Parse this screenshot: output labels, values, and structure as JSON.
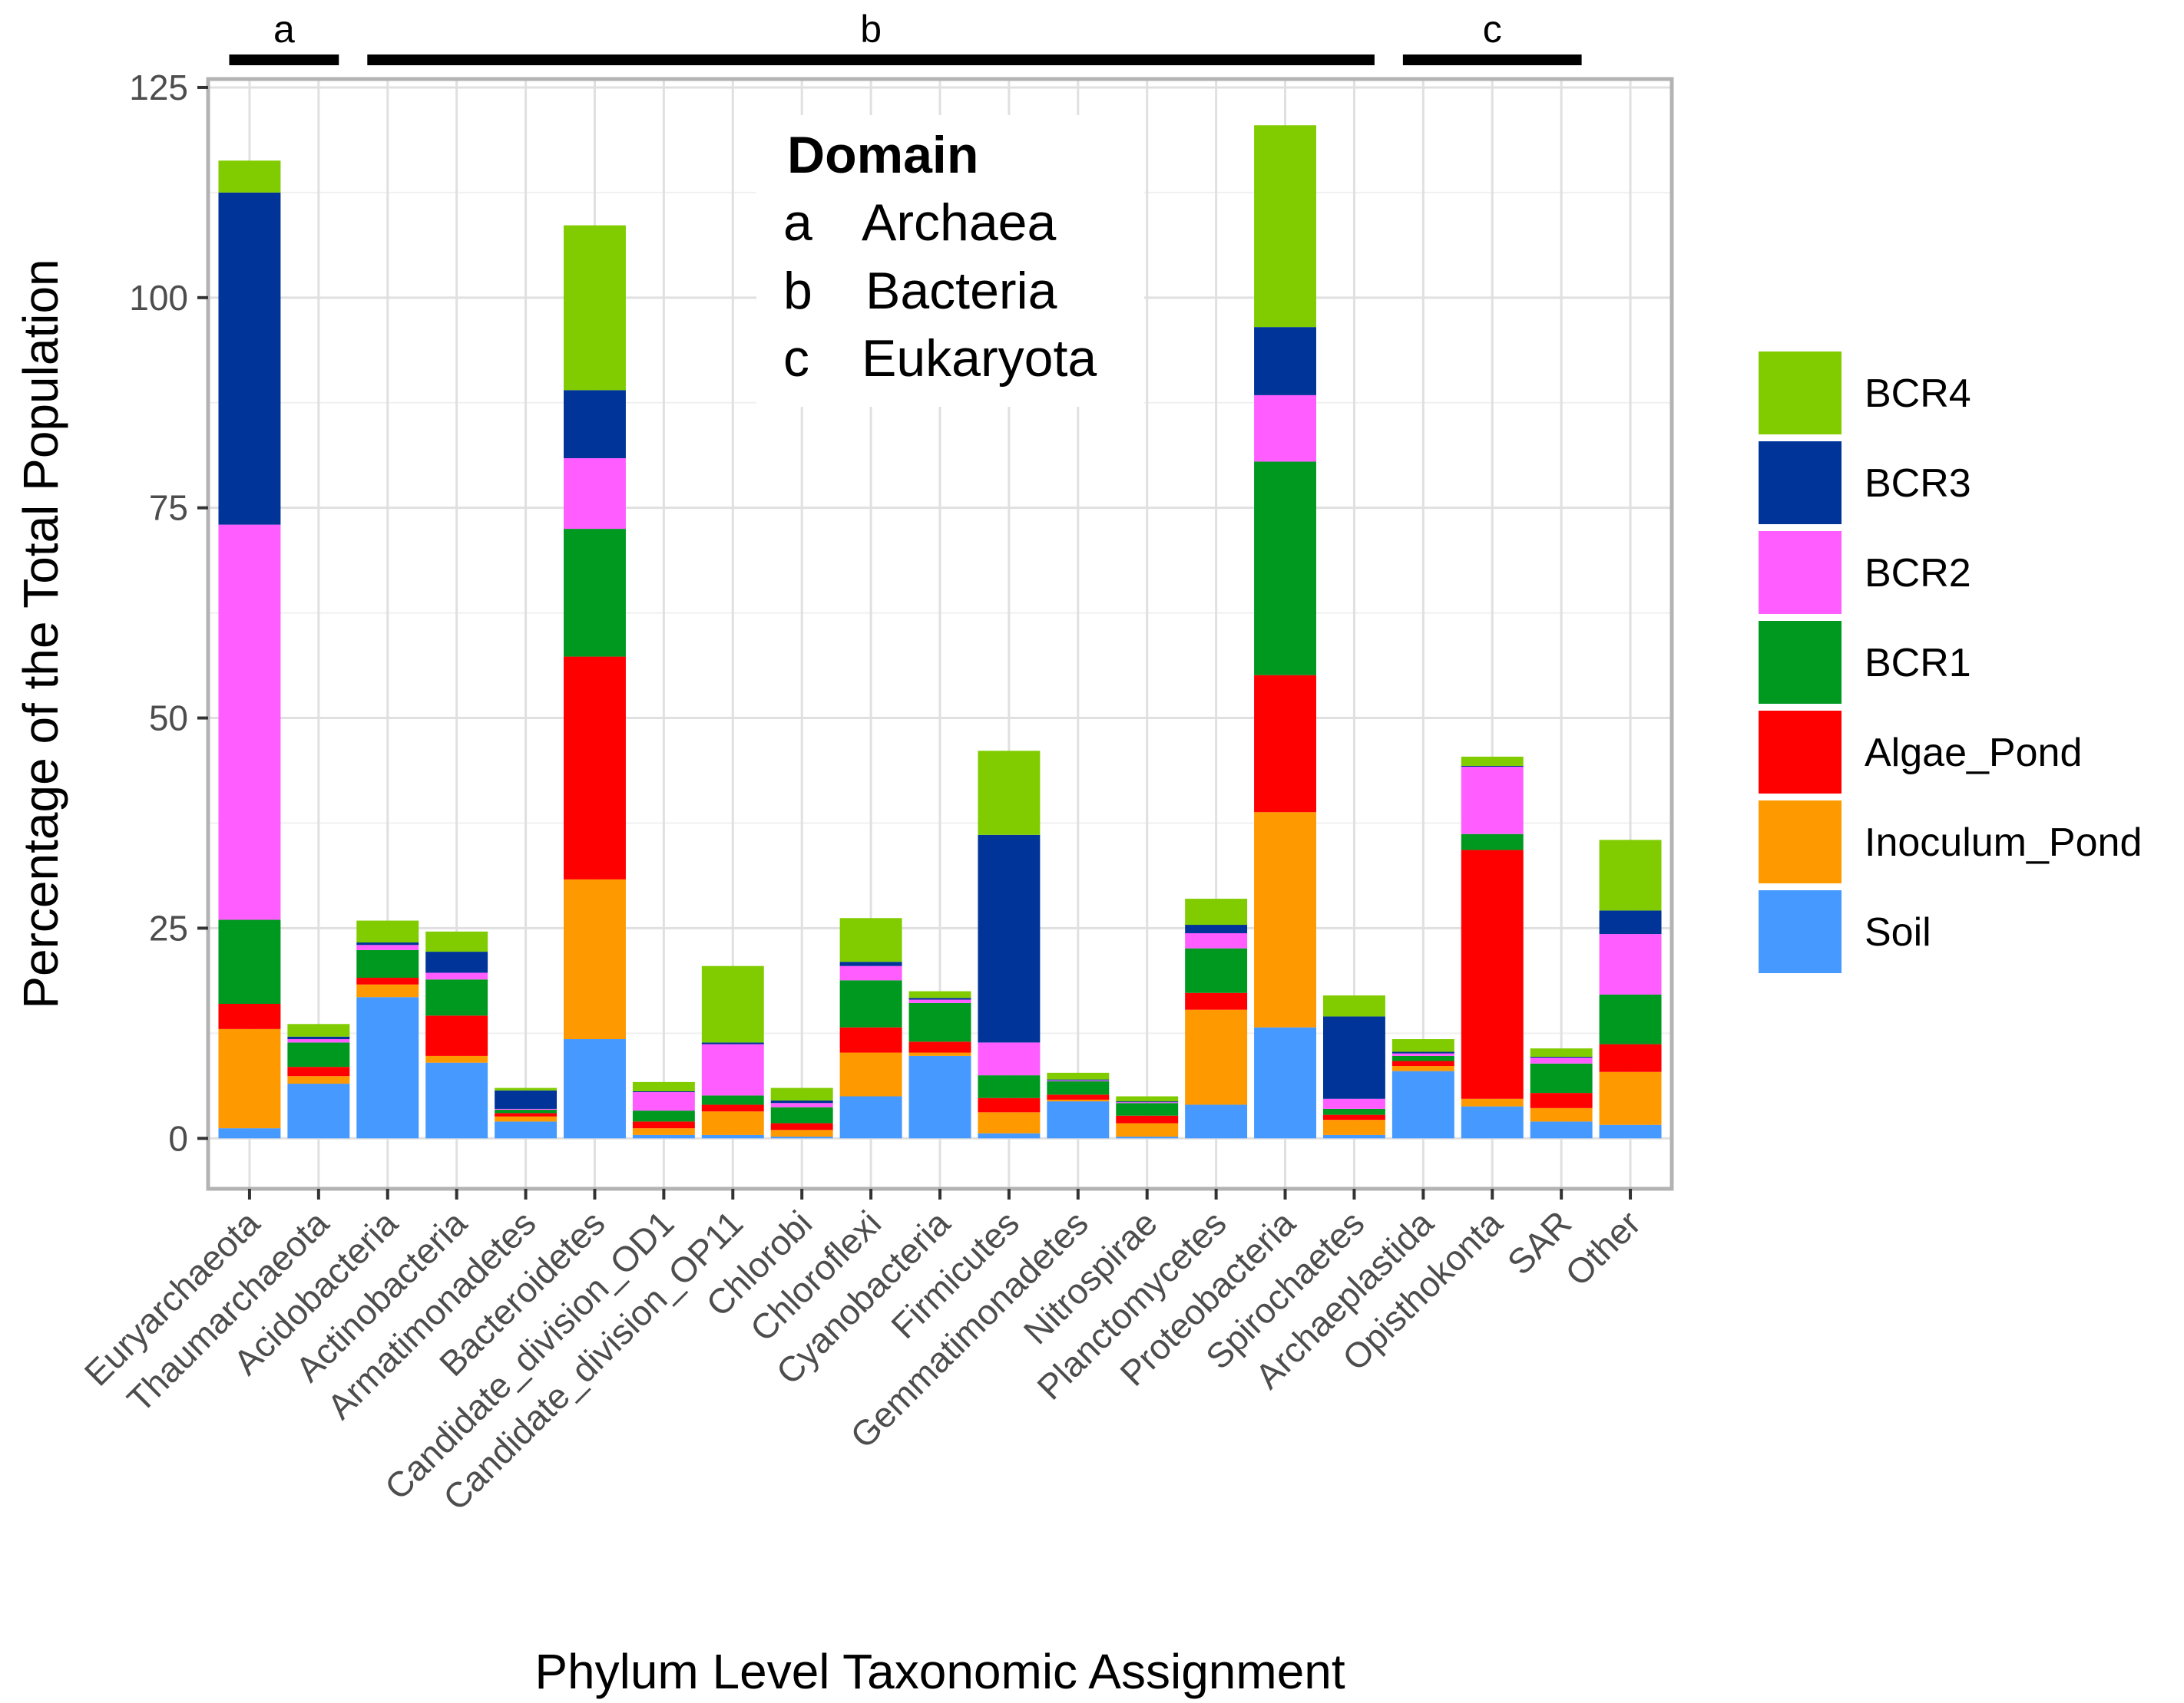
{
  "chart_data": {
    "type": "bar",
    "stacked": true,
    "title": "",
    "xlabel": "Phylum Level Taxonomic Assignment",
    "ylabel": "Percentage of the Total Population",
    "ylim": [
      -6,
      126
    ],
    "yticks": [
      0,
      25,
      50,
      75,
      100,
      125
    ],
    "grid": true,
    "categories": [
      "Euryarchaeota",
      "Thaumarchaeota",
      "Acidobacteria",
      "Actinobacteria",
      "Armatimonadetes",
      "Bacteroidetes",
      "Candidate_division_OD1",
      "Candidate_division_OP11",
      "Chlorobi",
      "Chloroflexi",
      "Cyanobacteria",
      "Firmicutes",
      "Gemmatimonadetes",
      "Nitrospirae",
      "Planctomycetes",
      "Proteobacteria",
      "Spirochaetes",
      "Archaeplastida",
      "Opisthokonta",
      "SAR",
      "Other"
    ],
    "series": [
      {
        "name": "Soil",
        "color": "#4599ff",
        "values": [
          1.2,
          6.5,
          16.8,
          9.0,
          2.0,
          11.8,
          0.4,
          0.4,
          0.2,
          5.0,
          9.8,
          0.6,
          4.4,
          0.2,
          4.0,
          13.2,
          0.4,
          8.0,
          3.8,
          2.0,
          1.6
        ]
      },
      {
        "name": "Inoculum_Pond",
        "color": "#ff9900",
        "values": [
          11.8,
          0.9,
          1.5,
          0.8,
          0.6,
          19.0,
          0.8,
          2.8,
          0.8,
          5.2,
          0.4,
          2.5,
          0.2,
          1.6,
          11.3,
          25.6,
          1.8,
          0.6,
          0.9,
          1.6,
          6.3
        ]
      },
      {
        "name": "Algae_Pond",
        "color": "#ff0000",
        "values": [
          3.0,
          1.1,
          0.8,
          4.8,
          0.4,
          26.5,
          0.8,
          0.8,
          0.8,
          3.0,
          1.3,
          1.7,
          0.6,
          0.9,
          2.0,
          16.3,
          0.6,
          0.6,
          29.6,
          1.8,
          3.3
        ]
      },
      {
        "name": "BCR1",
        "color": "#009920",
        "values": [
          10.0,
          2.9,
          3.3,
          4.3,
          0.4,
          15.2,
          1.3,
          1.1,
          1.9,
          5.6,
          4.6,
          2.7,
          1.6,
          1.5,
          5.3,
          25.4,
          0.7,
          0.6,
          1.9,
          3.5,
          5.9
        ]
      },
      {
        "name": "BCR2",
        "color": "#ff5dff",
        "values": [
          47.0,
          0.4,
          0.6,
          0.8,
          0.1,
          8.4,
          2.2,
          6.1,
          0.5,
          1.7,
          0.4,
          3.9,
          0.1,
          0.1,
          1.8,
          7.9,
          1.2,
          0.3,
          8.0,
          0.7,
          7.2
        ]
      },
      {
        "name": "BCR3",
        "color": "#003499",
        "values": [
          39.5,
          0.3,
          0.3,
          2.5,
          2.2,
          8.1,
          0.1,
          0.2,
          0.3,
          0.5,
          0.2,
          24.7,
          0.1,
          0.1,
          1.0,
          8.1,
          9.8,
          0.2,
          0.1,
          0.1,
          2.8
        ]
      },
      {
        "name": "BCR4",
        "color": "#80cc00",
        "values": [
          3.8,
          1.5,
          2.6,
          2.4,
          0.3,
          19.6,
          1.1,
          9.1,
          1.5,
          5.2,
          0.8,
          10.0,
          0.8,
          0.6,
          3.1,
          24.0,
          2.5,
          1.5,
          1.1,
          1.0,
          8.4
        ]
      }
    ],
    "domain_legend": {
      "title": "Domain",
      "rows": [
        {
          "key": "a",
          "label": "Archaea"
        },
        {
          "key": "b",
          "label": "Bacteria"
        },
        {
          "key": "c",
          "label": "Eukaryota"
        }
      ]
    },
    "domain_brackets": [
      {
        "label": "a",
        "from": 0,
        "to": 1
      },
      {
        "label": "b",
        "from": 2,
        "to": 16
      },
      {
        "label": "c",
        "from": 17,
        "to": 19
      }
    ],
    "legend_position": "right"
  }
}
